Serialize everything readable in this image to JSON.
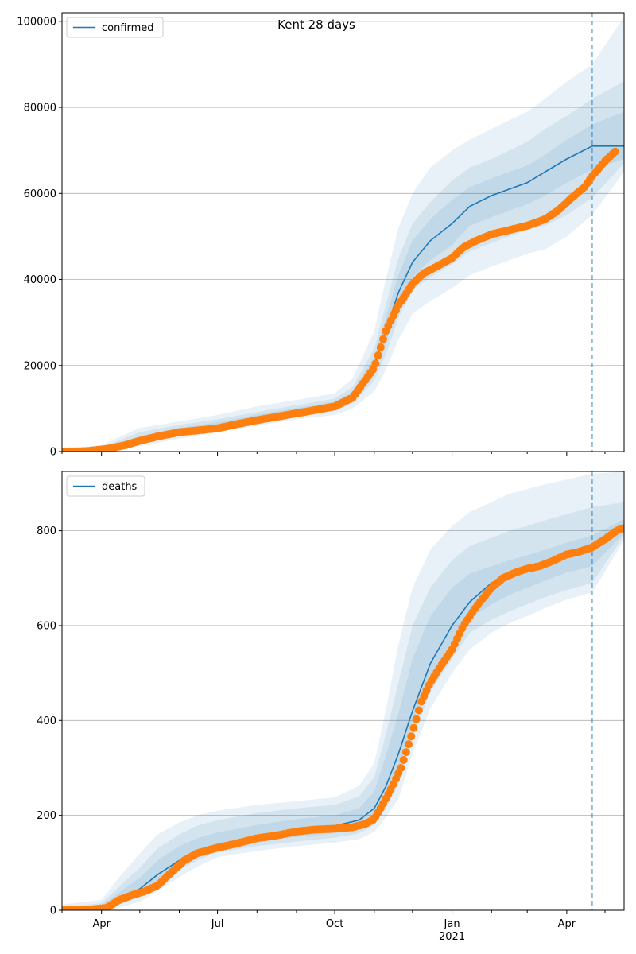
{
  "figure": {
    "title": "Kent 28 days"
  },
  "colors": {
    "model": "#1f77b4",
    "observed": "#ff7f0e",
    "grid": "#b0b0b0",
    "band": "#1f77b4",
    "vline": "#1f77b4"
  },
  "chart_data": [
    {
      "type": "line",
      "legend": "confirmed",
      "legend_position": "top-left",
      "grid": "y",
      "ylim": [
        0,
        102000
      ],
      "yticks": [
        0,
        20000,
        40000,
        60000,
        80000,
        100000
      ],
      "xlim": [
        "2020-03-01",
        "2021-05-16"
      ],
      "vline": "2021-04-21",
      "model": {
        "x": [
          "2020-03-01",
          "2020-04-01",
          "2020-05-01",
          "2020-06-01",
          "2020-07-01",
          "2020-08-01",
          "2020-09-01",
          "2020-10-01",
          "2020-10-15",
          "2020-11-01",
          "2020-11-10",
          "2020-11-20",
          "2020-12-01",
          "2020-12-15",
          "2021-01-01",
          "2021-01-15",
          "2021-02-01",
          "2021-02-15",
          "2021-03-01",
          "2021-03-15",
          "2021-04-01",
          "2021-04-21",
          "2021-05-16"
        ],
        "y": [
          0,
          500,
          2800,
          4800,
          6000,
          7800,
          9300,
          10800,
          13000,
          20000,
          28000,
          37000,
          44000,
          49000,
          53000,
          57000,
          59500,
          61000,
          62500,
          65000,
          68000,
          71000,
          71000
        ]
      },
      "bands": [
        {
          "upper": [
            500,
            1500,
            5500,
            7000,
            8500,
            10500,
            12000,
            13500,
            17000,
            28000,
            40000,
            52000,
            60000,
            66000,
            70000,
            72500,
            75000,
            77000,
            79000,
            82000,
            86000,
            90000,
            101000
          ],
          "lower": [
            0,
            0,
            1200,
            3000,
            4500,
            6000,
            7500,
            8500,
            10000,
            14000,
            19000,
            26000,
            32000,
            35000,
            38000,
            41000,
            43000,
            44500,
            46000,
            47000,
            50000,
            55000,
            65000
          ]
        },
        {
          "upper": [
            300,
            1000,
            4500,
            6200,
            7500,
            9200,
            10800,
            12300,
            15000,
            24000,
            34000,
            45000,
            53000,
            58000,
            63000,
            66000,
            68000,
            70000,
            72000,
            75000,
            78000,
            82000,
            86000
          ],
          "lower": [
            0,
            100,
            1800,
            3800,
            5300,
            6800,
            8300,
            9400,
            11200,
            16500,
            22500,
            31000,
            37500,
            40500,
            43500,
            46500,
            48500,
            50000,
            51500,
            52500,
            55000,
            59000,
            67000
          ]
        },
        {
          "upper": [
            150,
            700,
            3600,
            5500,
            6800,
            8600,
            10100,
            11600,
            14000,
            22000,
            31000,
            41000,
            49000,
            54000,
            58500,
            61500,
            63500,
            65000,
            66500,
            69000,
            72500,
            76000,
            79000
          ],
          "lower": [
            0,
            300,
            2200,
            4200,
            5700,
            7300,
            8700,
            10000,
            12200,
            18200,
            25200,
            33500,
            40500,
            44500,
            48000,
            52500,
            54500,
            56000,
            57500,
            59500,
            62500,
            65500,
            68000
          ]
        }
      ],
      "observed": {
        "x": [
          "2020-03-01",
          "2020-03-20",
          "2020-04-05",
          "2020-04-20",
          "2020-05-01",
          "2020-05-15",
          "2020-06-01",
          "2020-06-15",
          "2020-07-01",
          "2020-07-15",
          "2020-08-01",
          "2020-08-15",
          "2020-09-01",
          "2020-09-15",
          "2020-10-01",
          "2020-10-15",
          "2020-11-01",
          "2020-11-10",
          "2020-11-20",
          "2020-12-01",
          "2020-12-10",
          "2020-12-20",
          "2021-01-01",
          "2021-01-10",
          "2021-01-20",
          "2021-02-01",
          "2021-02-15",
          "2021-03-01",
          "2021-03-15",
          "2021-03-25",
          "2021-04-05",
          "2021-04-15",
          "2021-04-21",
          "2021-05-01",
          "2021-05-10"
        ],
        "y": [
          0,
          100,
          600,
          1500,
          2500,
          3500,
          4500,
          4900,
          5400,
          6300,
          7300,
          8000,
          8900,
          9600,
          10500,
          12500,
          19500,
          28000,
          34000,
          39000,
          41500,
          43000,
          45000,
          47500,
          49000,
          50500,
          51500,
          52500,
          54000,
          56000,
          59000,
          61500,
          64000,
          67500,
          70000
        ]
      }
    },
    {
      "type": "line",
      "legend": "deaths",
      "legend_position": "top-left",
      "grid": "y",
      "ylim": [
        0,
        925
      ],
      "yticks": [
        0,
        200,
        400,
        600,
        800
      ],
      "xlim": [
        "2020-03-01",
        "2021-05-16"
      ],
      "xticks": [
        "2020-04-01",
        "2020-07-01",
        "2020-10-01",
        "2021-01-01",
        "2021-04-01"
      ],
      "xticklabels": [
        "Apr",
        "Jul",
        "Oct",
        "Jan",
        "Apr"
      ],
      "year_label": "2021",
      "vline": "2021-04-21",
      "model": {
        "x": [
          "2020-03-01",
          "2020-04-01",
          "2020-04-15",
          "2020-05-01",
          "2020-05-15",
          "2020-06-01",
          "2020-06-15",
          "2020-07-01",
          "2020-08-01",
          "2020-09-01",
          "2020-10-01",
          "2020-10-20",
          "2020-11-01",
          "2020-11-10",
          "2020-11-20",
          "2020-12-01",
          "2020-12-15",
          "2021-01-01",
          "2021-01-15",
          "2021-02-01",
          "2021-02-15",
          "2021-03-01",
          "2021-03-15",
          "2021-04-01",
          "2021-04-21",
          "2021-05-16"
        ],
        "y": [
          0,
          5,
          25,
          45,
          75,
          105,
          125,
          138,
          155,
          170,
          178,
          190,
          215,
          260,
          330,
          420,
          520,
          600,
          650,
          690,
          705,
          718,
          730,
          745,
          760,
          808
        ]
      },
      "bands": [
        {
          "upper": [
            12,
            22,
            70,
            120,
            160,
            185,
            200,
            210,
            222,
            230,
            238,
            262,
            310,
            420,
            560,
            680,
            760,
            810,
            840,
            860,
            878,
            888,
            898,
            908,
            920,
            925
          ],
          "lower": [
            0,
            0,
            6,
            18,
            40,
            70,
            92,
            112,
            125,
            135,
            143,
            150,
            165,
            195,
            235,
            330,
            425,
            500,
            550,
            585,
            605,
            620,
            637,
            655,
            670,
            780
          ]
        },
        {
          "upper": [
            6,
            15,
            50,
            90,
            130,
            160,
            178,
            190,
            205,
            215,
            222,
            240,
            280,
            370,
            480,
            600,
            680,
            738,
            768,
            785,
            800,
            810,
            822,
            835,
            850,
            860
          ],
          "lower": [
            0,
            0,
            12,
            28,
            55,
            85,
            105,
            122,
            135,
            145,
            153,
            162,
            180,
            215,
            265,
            365,
            460,
            530,
            585,
            612,
            630,
            645,
            660,
            675,
            690,
            790
          ]
        },
        {
          "upper": [
            3,
            10,
            38,
            68,
            105,
            135,
            152,
            164,
            180,
            192,
            200,
            215,
            250,
            325,
            415,
            530,
            620,
            680,
            710,
            725,
            738,
            748,
            760,
            775,
            790,
            825
          ],
          "lower": [
            0,
            2,
            16,
            35,
            65,
            95,
            115,
            130,
            145,
            155,
            162,
            172,
            192,
            232,
            295,
            395,
            495,
            565,
            615,
            645,
            665,
            680,
            695,
            712,
            725,
            795
          ]
        }
      ],
      "observed": {
        "x": [
          "2020-03-01",
          "2020-03-20",
          "2020-04-05",
          "2020-04-15",
          "2020-04-25",
          "2020-05-05",
          "2020-05-15",
          "2020-05-25",
          "2020-06-05",
          "2020-06-15",
          "2020-07-01",
          "2020-07-15",
          "2020-08-01",
          "2020-08-15",
          "2020-09-01",
          "2020-09-15",
          "2020-10-01",
          "2020-10-15",
          "2020-10-25",
          "2020-11-01",
          "2020-11-08",
          "2020-11-15",
          "2020-11-22",
          "2020-12-01",
          "2020-12-08",
          "2020-12-15",
          "2020-12-22",
          "2021-01-01",
          "2021-01-10",
          "2021-01-20",
          "2021-02-01",
          "2021-02-10",
          "2021-02-20",
          "2021-03-01",
          "2021-03-10",
          "2021-03-20",
          "2021-04-01",
          "2021-04-10",
          "2021-04-21",
          "2021-05-01",
          "2021-05-10",
          "2021-05-15"
        ],
        "y": [
          0,
          1,
          5,
          22,
          32,
          40,
          52,
          78,
          105,
          120,
          132,
          140,
          152,
          157,
          166,
          170,
          172,
          175,
          182,
          192,
          225,
          260,
          300,
          375,
          440,
          480,
          510,
          550,
          600,
          640,
          680,
          700,
          712,
          720,
          725,
          735,
          750,
          755,
          765,
          782,
          800,
          805
        ]
      }
    }
  ]
}
